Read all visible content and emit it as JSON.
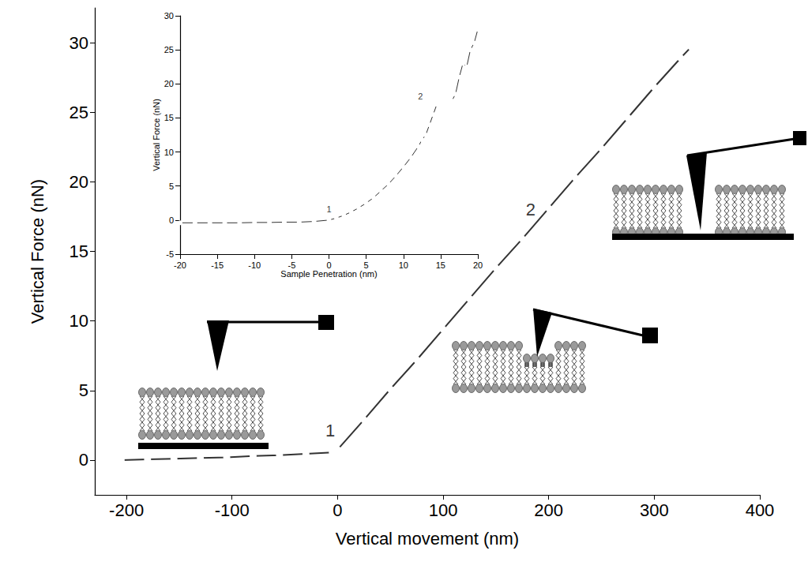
{
  "chart_data": [
    {
      "type": "line",
      "x_label": "Vertical movement (nm)",
      "y_label": "Vertical Force (nN)",
      "x": [
        -205,
        -180,
        -155,
        -130,
        -105,
        -80,
        -55,
        -30,
        -5,
        0,
        25,
        50,
        75,
        100,
        125,
        150,
        175,
        200,
        225,
        250,
        275,
        300,
        325,
        335
      ],
      "values": [
        0,
        0.05,
        0.1,
        0.15,
        0.2,
        0.3,
        0.35,
        0.45,
        0.55,
        0.75,
        2.9,
        5.1,
        7.2,
        9.4,
        11.6,
        13.8,
        15.9,
        18.1,
        20.3,
        22.4,
        24.6,
        26.8,
        28.9,
        29.7
      ],
      "color": "#333333",
      "marker": "circle",
      "line_style": "solid",
      "xlim": [
        -230,
        400
      ],
      "xticks": [
        -200,
        -100,
        0,
        100,
        200,
        300,
        400
      ],
      "ylim": [
        -2.5,
        32.5
      ],
      "yticks": [
        0,
        5,
        10,
        15,
        20,
        25,
        30
      ],
      "grid": false,
      "annotations": [
        {
          "text": "1",
          "x": -7,
          "y": 2.1
        },
        {
          "text": "2",
          "x": 183,
          "y": 18
        }
      ]
    },
    {
      "type": "line",
      "x_label": "Sample Penetration (nm)",
      "y_label": "Vertical Force (nN)",
      "x": [
        -20,
        -18,
        -16,
        -14,
        -12,
        -10,
        -8,
        -6,
        -4,
        -2,
        0,
        1,
        2,
        3,
        4,
        5,
        6,
        7,
        8,
        9,
        10,
        11,
        12,
        12.5,
        13,
        13.5,
        14,
        14.5,
        15,
        15.5,
        16,
        16.5,
        17,
        17.5,
        18,
        18.5,
        19,
        19.5,
        20
      ],
      "values": [
        -0.4,
        -0.4,
        -0.4,
        -0.4,
        -0.4,
        -0.35,
        -0.35,
        -0.3,
        -0.3,
        -0.2,
        0,
        0.3,
        0.7,
        1.2,
        1.8,
        2.5,
        3.3,
        4.3,
        5.3,
        6.5,
        7.8,
        9.2,
        10.8,
        11.8,
        12.5,
        14,
        15.5,
        17,
        17.2,
        17.2,
        17.3,
        17.5,
        18.5,
        21,
        23,
        22.5,
        25,
        26,
        28
      ],
      "color": "#333333",
      "marker": "circle",
      "line_style": "solid",
      "xlim": [
        -20,
        20
      ],
      "xticks": [
        -20,
        -15,
        -10,
        -5,
        0,
        5,
        10,
        15,
        20
      ],
      "ylim": [
        -5,
        30
      ],
      "yticks": [
        -5,
        0,
        5,
        10,
        15,
        20,
        25,
        30
      ],
      "grid": false,
      "annotations": [
        {
          "text": "1",
          "x": 0,
          "y": 1.6
        },
        {
          "text": "2",
          "x": 12.3,
          "y": 18.2
        }
      ]
    }
  ]
}
